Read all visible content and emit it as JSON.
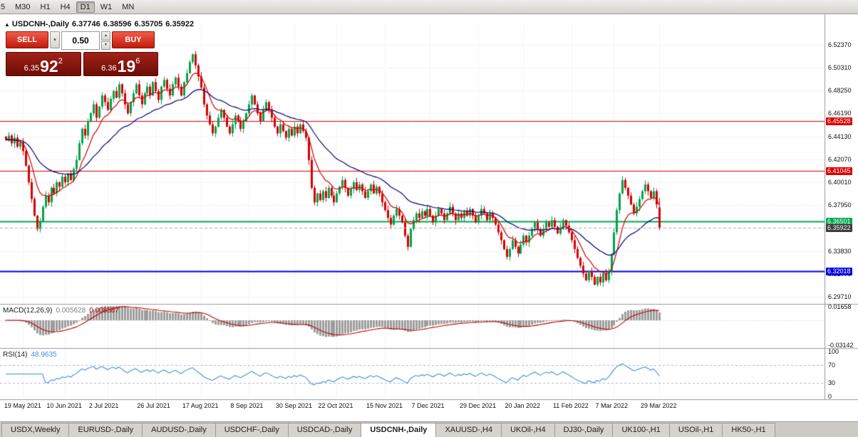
{
  "toolbar": {
    "timeframes": [
      {
        "label": "5",
        "active": false,
        "partial": true
      },
      {
        "label": "M30",
        "active": false
      },
      {
        "label": "H1",
        "active": false
      },
      {
        "label": "H4",
        "active": false
      },
      {
        "label": "D1",
        "active": true
      },
      {
        "label": "W1",
        "active": false
      },
      {
        "label": "MN",
        "active": false
      }
    ]
  },
  "chart": {
    "title": {
      "arrow": "▲",
      "symbol": "USDCNH-,Daily",
      "open": "6.37746",
      "high": "6.38596",
      "low": "6.35705",
      "close": "6.35922"
    },
    "trade_panel": {
      "sell_label": "SELL",
      "buy_label": "BUY",
      "volume": "0.50",
      "dropdown_icon": "▾",
      "spin_up_icon": "▴",
      "spin_down_icon": "▾",
      "sell_price": {
        "small": "6.35",
        "big": "92",
        "sup": "2"
      },
      "buy_price": {
        "small": "6.36",
        "big": "19",
        "sup": "6"
      }
    }
  },
  "chart_data": {
    "type": "candlestick",
    "symbol": "USDCNH",
    "period": "Daily",
    "closes": [
      6.438,
      6.442,
      6.435,
      6.44,
      6.432,
      6.436,
      6.428,
      6.415,
      6.4,
      6.385,
      6.37,
      6.358,
      6.365,
      6.378,
      6.388,
      6.382,
      6.395,
      6.39,
      6.4,
      6.396,
      6.405,
      6.4,
      6.408,
      6.402,
      6.412,
      6.42,
      6.435,
      6.448,
      6.442,
      6.455,
      6.462,
      6.47,
      6.458,
      6.468,
      6.478,
      6.472,
      6.465,
      6.475,
      6.482,
      6.476,
      6.488,
      6.48,
      6.47,
      6.462,
      6.472,
      6.48,
      6.488,
      6.478,
      6.47,
      6.48,
      6.486,
      6.478,
      6.49,
      6.482,
      6.474,
      6.486,
      6.492,
      6.484,
      6.478,
      6.488,
      6.494,
      6.486,
      6.478,
      6.49,
      6.498,
      6.508,
      6.515,
      6.505,
      6.495,
      6.485,
      6.47,
      6.46,
      6.452,
      6.444,
      6.45,
      6.458,
      6.465,
      6.458,
      6.45,
      6.444,
      6.452,
      6.46,
      6.455,
      6.448,
      6.455,
      6.462,
      6.47,
      6.478,
      6.47,
      6.462,
      6.455,
      6.465,
      6.472,
      6.465,
      6.458,
      6.45,
      6.444,
      6.452,
      6.446,
      6.44,
      6.448,
      6.442,
      6.45,
      6.444,
      6.452,
      6.446,
      6.44,
      6.42,
      6.395,
      6.382,
      6.39,
      6.384,
      6.392,
      6.386,
      6.395,
      6.388,
      6.382,
      6.39,
      6.396,
      6.402,
      6.395,
      6.388,
      6.394,
      6.4,
      6.393,
      6.398,
      6.392,
      6.386,
      6.392,
      6.398,
      6.39,
      6.396,
      6.39,
      6.382,
      6.375,
      6.368,
      6.362,
      6.37,
      6.376,
      6.37,
      6.364,
      6.352,
      6.342,
      6.358,
      6.366,
      6.372,
      6.368,
      6.374,
      6.37,
      6.376,
      6.37,
      6.364,
      6.37,
      6.376,
      6.372,
      6.366,
      6.372,
      6.378,
      6.372,
      6.366,
      6.372,
      6.368,
      6.374,
      6.37,
      6.376,
      6.37,
      6.364,
      6.37,
      6.376,
      6.372,
      6.366,
      6.372,
      6.368,
      6.362,
      6.355,
      6.348,
      6.34,
      6.333,
      6.34,
      6.348,
      6.342,
      6.336,
      6.344,
      6.352,
      6.346,
      6.352,
      6.358,
      6.364,
      6.358,
      6.352,
      6.358,
      6.364,
      6.36,
      6.366,
      6.36,
      6.354,
      6.36,
      6.366,
      6.361,
      6.355,
      6.348,
      6.34,
      6.332,
      6.325,
      6.318,
      6.312,
      6.32,
      6.315,
      6.308,
      6.315,
      6.31,
      6.318,
      6.312,
      6.32,
      6.335,
      6.355,
      6.375,
      6.39,
      6.402,
      6.395,
      6.388,
      6.38,
      6.372,
      6.378,
      6.385,
      6.392,
      6.398,
      6.392,
      6.386,
      6.392,
      6.38,
      6.359
    ],
    "last_candle": {
      "open": 6.37746,
      "high": 6.38596,
      "low": 6.35705,
      "close": 6.35922
    },
    "price_axis": {
      "max": 6.535,
      "min": 6.292,
      "labels": [
        "6.52370",
        "6.50310",
        "6.48250",
        "6.46190",
        "6.44130",
        "6.42070",
        "6.40010",
        "6.37950",
        "6.35890",
        "6.33830",
        "6.31770",
        "6.29710"
      ]
    },
    "hlines": [
      {
        "price": 6.45528,
        "label": "6.45528",
        "color": "#DF0000",
        "width": 1
      },
      {
        "price": 6.41045,
        "label": "6.41045",
        "color": "#DF0000",
        "width": 1
      },
      {
        "price": 6.36501,
        "label": "6.36501",
        "color": "#00A84E",
        "width": 2
      },
      {
        "price": 6.32018,
        "label": "6.32018",
        "color": "#0000E0",
        "width": 2
      }
    ],
    "bid_line": {
      "price": 6.35922,
      "label": "6.35922",
      "line_color": "#b0b0b0",
      "tag_color": "#3d3d3d"
    },
    "xticks": [
      {
        "label": "19 May 2021",
        "idx": 6
      },
      {
        "label": "10 Jun 2021",
        "idx": 21
      },
      {
        "label": "2 Jul 2021",
        "idx": 36
      },
      {
        "label": "26 Jul 2021",
        "idx": 53
      },
      {
        "label": "17 Aug 2021",
        "idx": 69
      },
      {
        "label": "8 Sep 2021",
        "idx": 86
      },
      {
        "label": "30 Sep 2021",
        "idx": 102
      },
      {
        "label": "22 Oct 2021",
        "idx": 117
      },
      {
        "label": "15 Nov 2021",
        "idx": 134
      },
      {
        "label": "7 Dec 2021",
        "idx": 150
      },
      {
        "label": "29 Dec 2021",
        "idx": 167
      },
      {
        "label": "20 Jan 2022",
        "idx": 183
      },
      {
        "label": "11 Feb 2022",
        "idx": 200
      },
      {
        "label": "7 Mar 2022",
        "idx": 215
      },
      {
        "label": "29 Mar 2022",
        "idx": 231
      }
    ],
    "macd": {
      "label": "MACD(12,26,9)",
      "value_main": "0.005628",
      "value_signal": "0.008587",
      "axis_max_label": "0.01658",
      "axis_min_label": "-0.03142",
      "max": 0.01658,
      "min": -0.03142,
      "histogram_color": "#9c9c9c",
      "signal_color": "#C00000"
    },
    "rsi": {
      "label": "RSI(14)",
      "value": "48.9635",
      "line_color": "#3E8EDE",
      "levels": [
        "100",
        "70",
        "30",
        "0"
      ],
      "level_lines": [
        70,
        30
      ]
    },
    "candle_up_color": "#00A24A",
    "candle_down_color": "#D60000",
    "ma_fast_color": "#D60000",
    "ma_slow_color": "#000080"
  },
  "tabs": [
    {
      "label": "USDX,Weekly",
      "active": false
    },
    {
      "label": "EURUSD-,Daily",
      "active": false
    },
    {
      "label": "AUDUSD-,Daily",
      "active": false
    },
    {
      "label": "USDCHF-,Daily",
      "active": false
    },
    {
      "label": "USDCAD-,Daily",
      "active": false
    },
    {
      "label": "USDCNH-,Daily",
      "active": true
    },
    {
      "label": "XAUUSD-,H4",
      "active": false
    },
    {
      "label": "UKOil-,H4",
      "active": false
    },
    {
      "label": "DJ30-,Daily",
      "active": false
    },
    {
      "label": "UK100-,H1",
      "active": false
    },
    {
      "label": "USOil-,H1",
      "active": false
    },
    {
      "label": "HK50-,H1",
      "active": false
    }
  ]
}
